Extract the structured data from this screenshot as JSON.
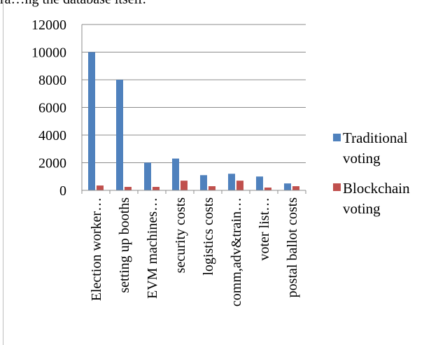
{
  "page_text": {
    "top_fragment": "ra…ng the database itself."
  },
  "chart_data": {
    "type": "bar",
    "categories": [
      "Election worker…",
      "setting up booths",
      "EVM machines…",
      "security costs",
      "logistics costs",
      "comm,adv&train…",
      "voter list…",
      "postal ballot costs"
    ],
    "series": [
      {
        "name": "Traditional voting",
        "color": "#4f81bd",
        "values": [
          10000,
          8000,
          2000,
          2300,
          1100,
          1200,
          1000,
          500
        ]
      },
      {
        "name": "Blockchain voting",
        "color": "#c0504d",
        "values": [
          350,
          250,
          250,
          700,
          300,
          700,
          200,
          300
        ]
      }
    ],
    "y_ticks": [
      "0",
      "2000",
      "4000",
      "6000",
      "8000",
      "10000",
      "12000"
    ],
    "ylim": [
      0,
      12000
    ],
    "grid": true,
    "legend_position": "right",
    "legend": {
      "traditional_lines": [
        "Traditional",
        "voting"
      ],
      "blockchain_lines": [
        "Blockchain",
        "voting"
      ]
    }
  }
}
